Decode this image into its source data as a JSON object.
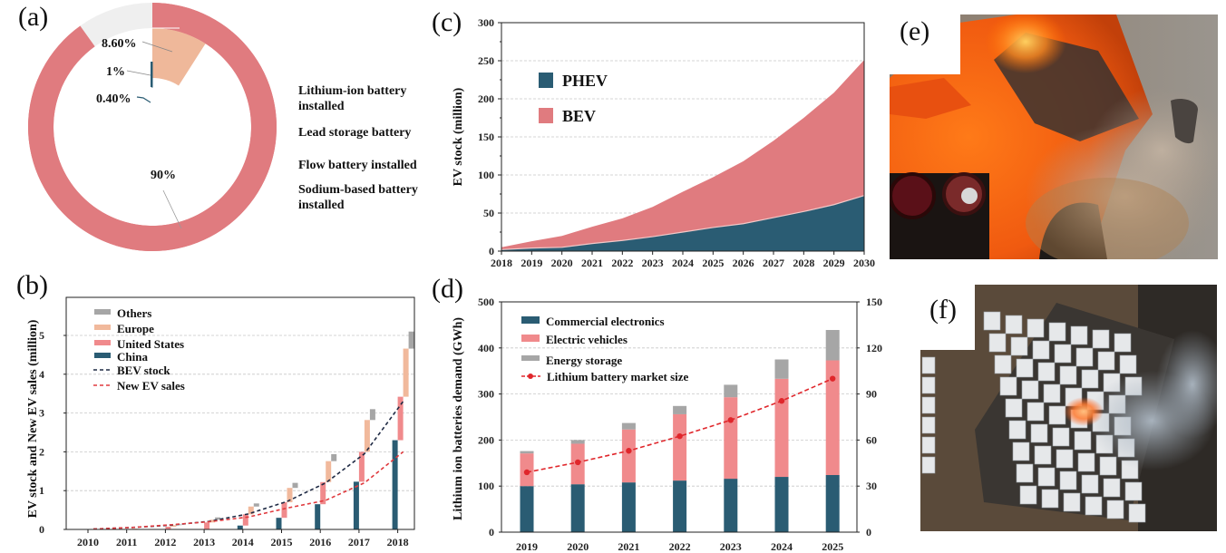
{
  "figure": {
    "panel_labels": [
      "(a)",
      "(b)",
      "(c)",
      "(d)",
      "(e)",
      "(f)"
    ]
  },
  "chart_data": [
    {
      "id": "a",
      "type": "pie",
      "variant": "donut",
      "labels": [
        "Lithium-ion battery installed",
        "Lead storage battery",
        "Flow battery installed",
        "Sodium-based battery installed"
      ],
      "values": [
        90,
        8.6,
        1,
        0.4
      ],
      "value_labels": [
        "90%",
        "8.60%",
        "1%",
        "0.40%"
      ],
      "colors": [
        "#e07b7f",
        "#efb89a",
        "#2a5c73",
        "#2a5c73"
      ],
      "legend_placement": "right",
      "title": ""
    },
    {
      "id": "b",
      "type": "bar",
      "title": "",
      "xlabel": "",
      "ylabel": "EV stock and New EV sales (million)",
      "categories": [
        "2010",
        "2011",
        "2012",
        "2013",
        "2014",
        "2015",
        "2016",
        "2017",
        "2018"
      ],
      "ylim": [
        0,
        5.5
      ],
      "yticks": [
        0,
        1,
        2,
        3,
        4,
        5
      ],
      "grid": true,
      "legend_placement": "top-left",
      "series": [
        {
          "name": "China",
          "kind": "bar",
          "color": "#2a5c73",
          "values": [
            0.0,
            0.0,
            0.0,
            0.01,
            0.1,
            0.3,
            0.65,
            1.23,
            2.3
          ]
        },
        {
          "name": "United States",
          "kind": "floating-bar",
          "color": "#f08a8c",
          "values": [
            0.0,
            0.01,
            0.07,
            0.17,
            0.29,
            0.4,
            0.57,
            0.77,
            1.12
          ]
        },
        {
          "name": "Europe",
          "kind": "floating-bar",
          "color": "#f1b99c",
          "values": [
            0.0,
            0.01,
            0.04,
            0.07,
            0.2,
            0.37,
            0.54,
            0.82,
            1.24
          ]
        },
        {
          "name": "Others",
          "kind": "floating-bar",
          "color": "#a6a6a6",
          "values": [
            0.0,
            0.0,
            0.02,
            0.06,
            0.08,
            0.13,
            0.18,
            0.28,
            0.44
          ]
        },
        {
          "name": "BEV stock",
          "kind": "line",
          "style": "dashed",
          "color": "#1f2a44",
          "values": [
            0.01,
            0.05,
            0.11,
            0.21,
            0.4,
            0.72,
            1.2,
            1.95,
            3.3
          ]
        },
        {
          "name": "New EV sales",
          "kind": "line",
          "style": "dashed",
          "color": "#e03a3e",
          "values": [
            0.01,
            0.05,
            0.12,
            0.2,
            0.32,
            0.55,
            0.75,
            1.2,
            2.0
          ]
        }
      ]
    },
    {
      "id": "c",
      "type": "area",
      "title": "",
      "xlabel": "",
      "ylabel": "EV stock (million)",
      "x": [
        2018,
        2019,
        2020,
        2021,
        2022,
        2023,
        2024,
        2025,
        2026,
        2027,
        2028,
        2029,
        2030
      ],
      "xticks": [
        "2018",
        "2019",
        "2020",
        "2021",
        "2022",
        "2023",
        "2024",
        "2025",
        "2026",
        "2027",
        "2028",
        "2029",
        "2030"
      ],
      "ylim": [
        0,
        300
      ],
      "yticks": [
        0,
        50,
        100,
        150,
        200,
        250,
        300
      ],
      "grid": true,
      "legend_placement": "top-left",
      "stacked": true,
      "series": [
        {
          "name": "PHEV",
          "color": "#2a5c73",
          "values": [
            2,
            4,
            5,
            10,
            14,
            19,
            25,
            31,
            36,
            44,
            52,
            61,
            73
          ]
        },
        {
          "name": "BEV",
          "color": "#e07b7f",
          "values": [
            3,
            9,
            15,
            22,
            29,
            39,
            53,
            66,
            82,
            101,
            123,
            147,
            178
          ]
        }
      ],
      "totals": [
        5,
        13,
        20,
        32,
        43,
        58,
        78,
        97,
        118,
        145,
        175,
        208,
        251
      ]
    },
    {
      "id": "d",
      "type": "bar",
      "title": "",
      "xlabel": "",
      "ylabel": "Lithium ion batteries demand (GWh)",
      "y2label": "",
      "categories": [
        "2019",
        "2020",
        "2021",
        "2022",
        "2023",
        "2024",
        "2025"
      ],
      "ylim": [
        0,
        500
      ],
      "yticks": [
        0,
        100,
        200,
        300,
        400,
        500
      ],
      "y2lim": [
        0,
        150
      ],
      "y2ticks": [
        0,
        30,
        60,
        90,
        120,
        150
      ],
      "grid": true,
      "legend_placement": "top-left",
      "stacked": true,
      "series": [
        {
          "name": "Commercial electronics",
          "kind": "bar",
          "color": "#2a5c73",
          "values": [
            100,
            104,
            108,
            112,
            116,
            120,
            124
          ]
        },
        {
          "name": "Electric vehicles",
          "kind": "bar",
          "color": "#f08a8c",
          "values": [
            71,
            88,
            115,
            144,
            177,
            213,
            249
          ]
        },
        {
          "name": "Energy storage",
          "kind": "bar",
          "color": "#a6a6a6",
          "values": [
            5,
            8,
            14,
            18,
            27,
            42,
            66
          ]
        },
        {
          "name": "Lithium battery market size",
          "kind": "line",
          "axis": "right",
          "style": "dashed",
          "marker": "circle",
          "color": "#e0262b",
          "values": [
            39,
            45.5,
            53,
            62.5,
            73,
            85.5,
            100
          ]
        }
      ]
    }
  ],
  "photos": {
    "e": {
      "subject": "burning orange sports car"
    },
    "f": {
      "subject": "battery energy storage facility fire"
    }
  }
}
